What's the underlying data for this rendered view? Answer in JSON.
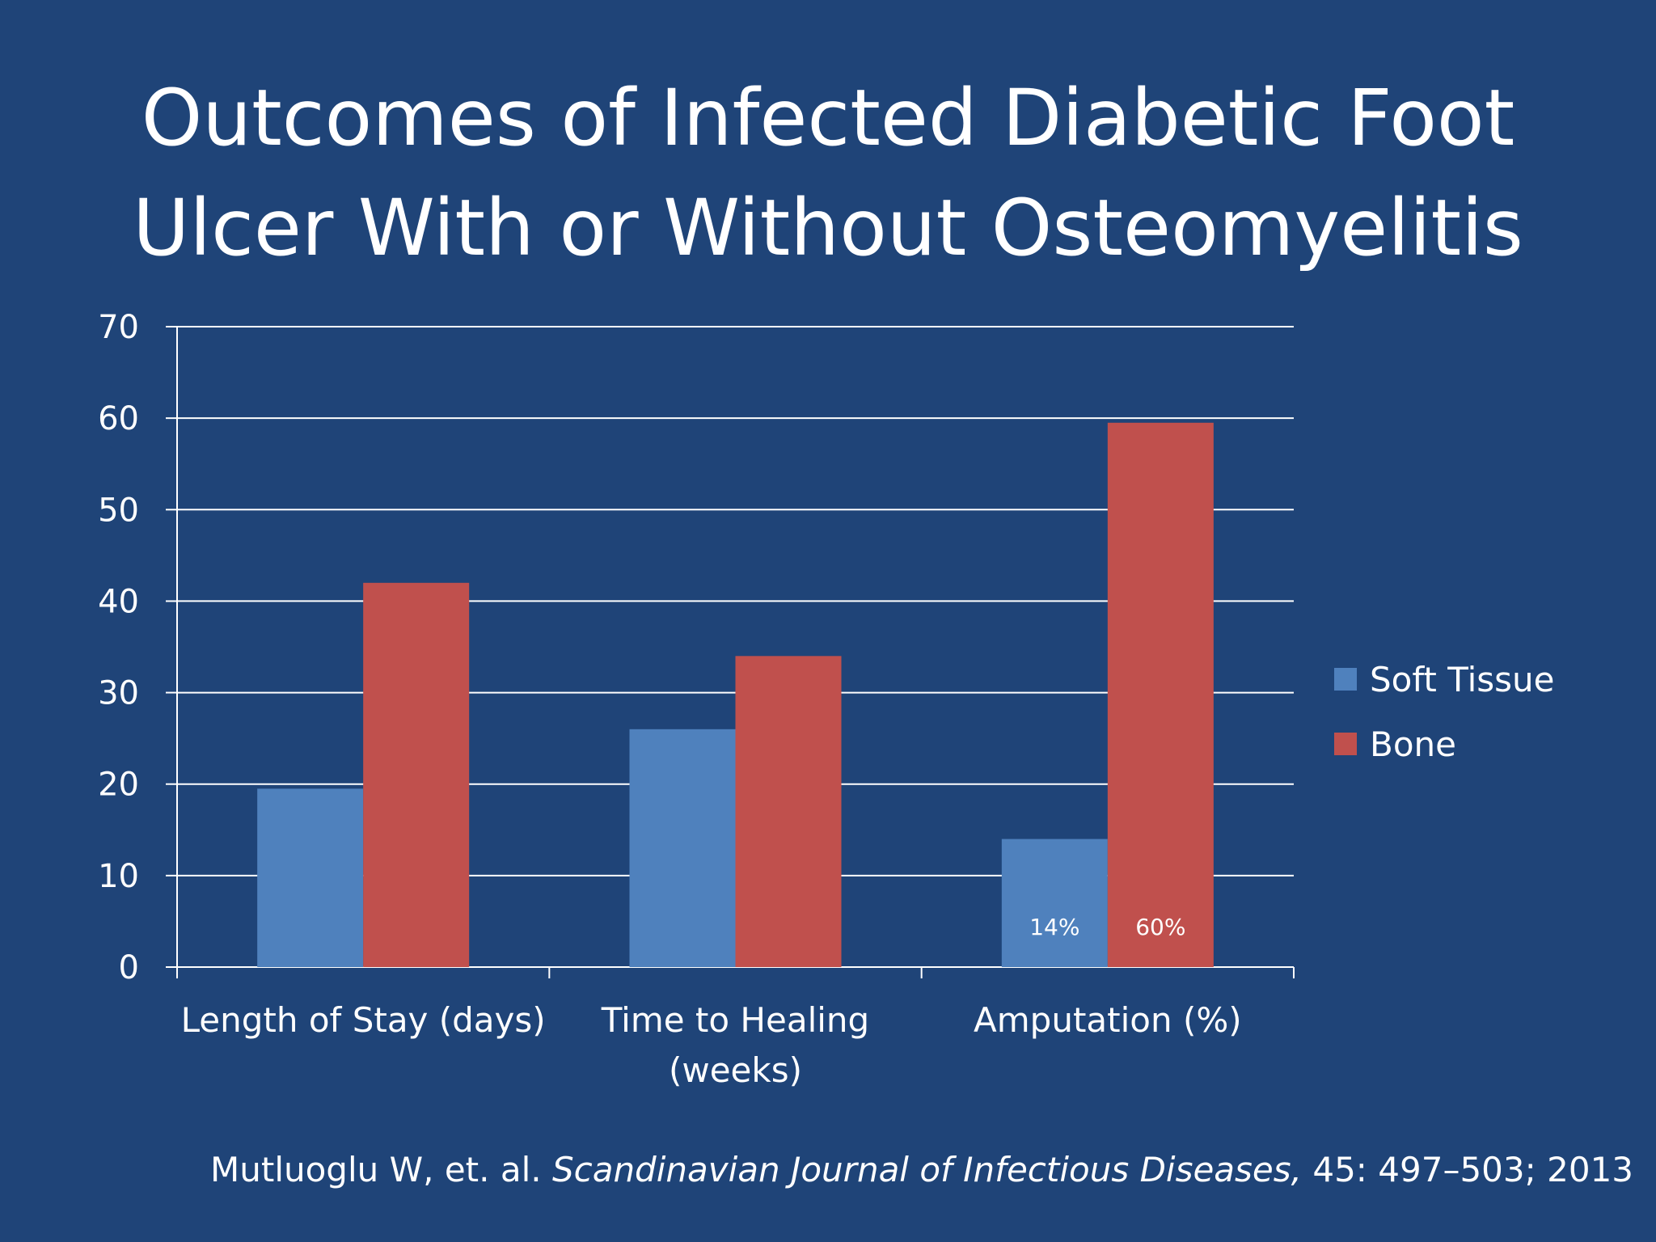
{
  "slide": {
    "title_line1": "Outcomes of Infected Diabetic Foot",
    "title_line2": "Ulcer With or Without Osteomyelitis",
    "citation": {
      "authors": "Mutluoglu W, et. al. ",
      "journal": "Scandinavian Journal of Infectious Diseases,",
      "details": " 45: 497–503; 2013"
    }
  },
  "colors": {
    "background": "#1f4478",
    "soft_tissue": "#4f81bd",
    "bone": "#c0504d",
    "gridline": "#ffffff"
  },
  "chart_data": {
    "type": "bar",
    "categories": [
      [
        "Length of Stay (days)"
      ],
      [
        "Time to Healing",
        "(weeks)"
      ],
      [
        "Amputation (%)"
      ]
    ],
    "series": [
      {
        "name": "Soft Tissue",
        "values": [
          19.5,
          26,
          14
        ],
        "labels": [
          "",
          "",
          "14%"
        ]
      },
      {
        "name": "Bone",
        "values": [
          42,
          34,
          59.5
        ],
        "labels": [
          "",
          "",
          "60%"
        ]
      }
    ],
    "ylim": [
      0,
      70
    ],
    "yticks": [
      0,
      10,
      20,
      30,
      40,
      50,
      60,
      70
    ],
    "grid": true,
    "legend": "right"
  }
}
